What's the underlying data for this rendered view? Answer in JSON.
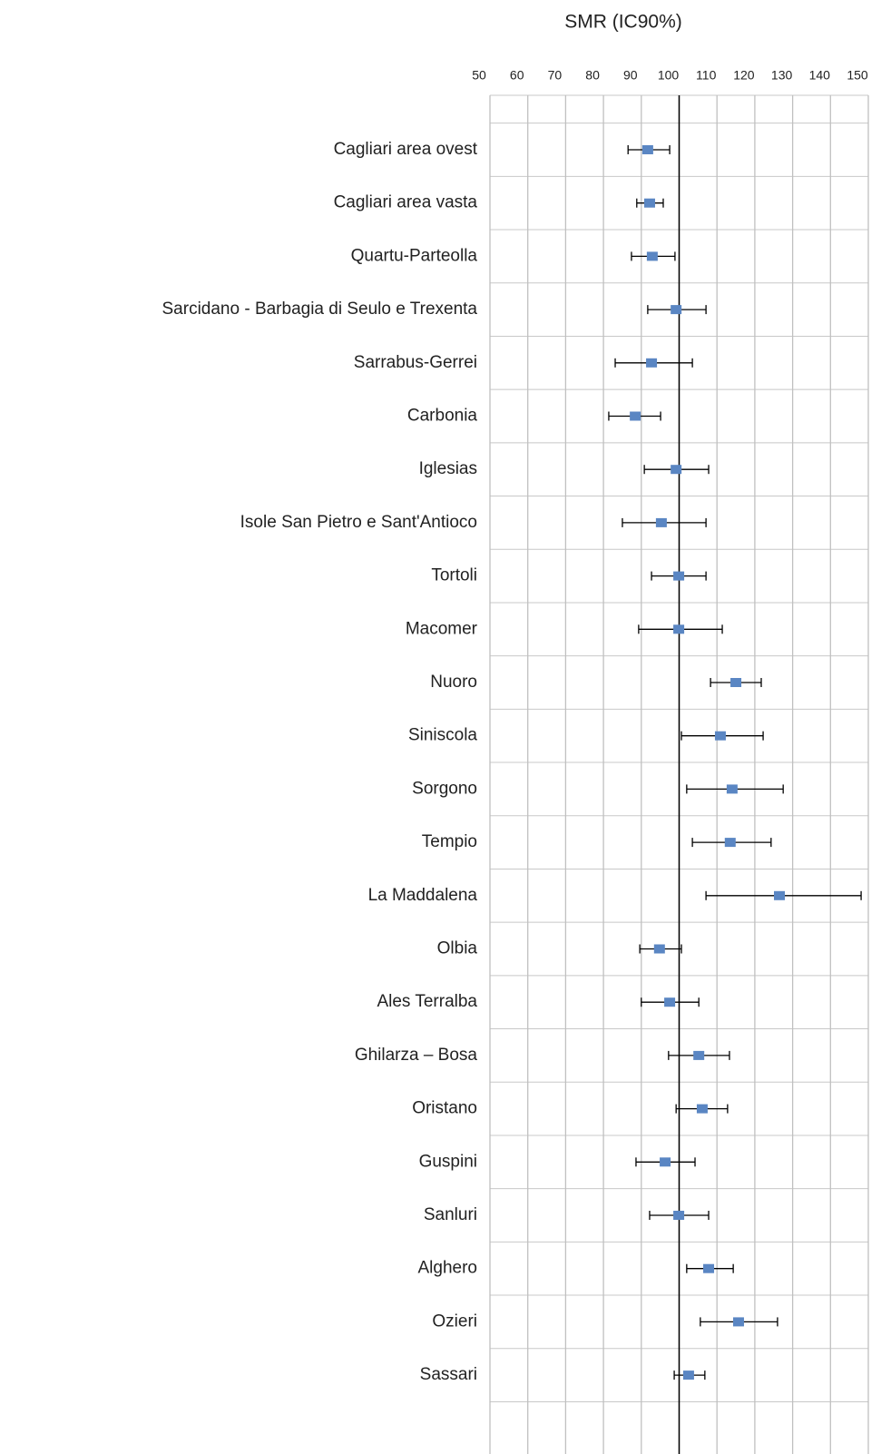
{
  "chart_data": {
    "type": "forest",
    "title": "SMR (IC90%)",
    "categories": [
      "Cagliari area ovest",
      "Cagliari area vasta",
      "Quartu-Parteolla",
      "Sarcidano - Barbagia di Seulo e Trexenta",
      "Sarrabus-Gerrei",
      "Carbonia",
      "Iglesias",
      "Isole San Pietro e Sant'Antioco",
      "Tortoli",
      "Macomer",
      "Nuoro",
      "Siniscola",
      "Sorgono",
      "Tempio",
      "La Maddalena",
      "Olbia",
      "Ales Terralba",
      "Ghilarza – Bosa",
      "Oristano",
      "Guspini",
      "Sanluri",
      "Alghero",
      "Ozieri",
      "Sassari"
    ],
    "values": [
      91.7,
      92.2,
      92.9,
      99.2,
      92.7,
      88.4,
      99.2,
      95.3,
      99.9,
      99.9,
      115.0,
      110.9,
      114.0,
      113.5,
      126.5,
      94.8,
      97.5,
      105.2,
      106.1,
      96.3,
      99.9,
      107.8,
      115.7,
      102.5
    ],
    "low": [
      86.5,
      88.8,
      87.4,
      91.7,
      83.1,
      81.4,
      90.8,
      85.0,
      92.7,
      89.3,
      108.3,
      100.6,
      102.0,
      103.5,
      107.1,
      89.6,
      90.0,
      97.2,
      99.2,
      88.6,
      92.2,
      102.0,
      105.6,
      98.7
    ],
    "high": [
      97.5,
      95.8,
      98.9,
      107.1,
      103.5,
      95.1,
      107.8,
      107.1,
      107.1,
      111.4,
      121.7,
      122.2,
      127.5,
      124.3,
      148.1,
      100.6,
      105.2,
      113.3,
      112.8,
      104.2,
      107.8,
      114.3,
      126.0,
      106.8
    ],
    "color": "#5a86c3",
    "reference_line": 100,
    "xlim": [
      50,
      150
    ],
    "xticks": [
      50,
      60,
      70,
      80,
      90,
      100,
      110,
      120,
      130,
      140,
      150
    ],
    "grid": true
  }
}
